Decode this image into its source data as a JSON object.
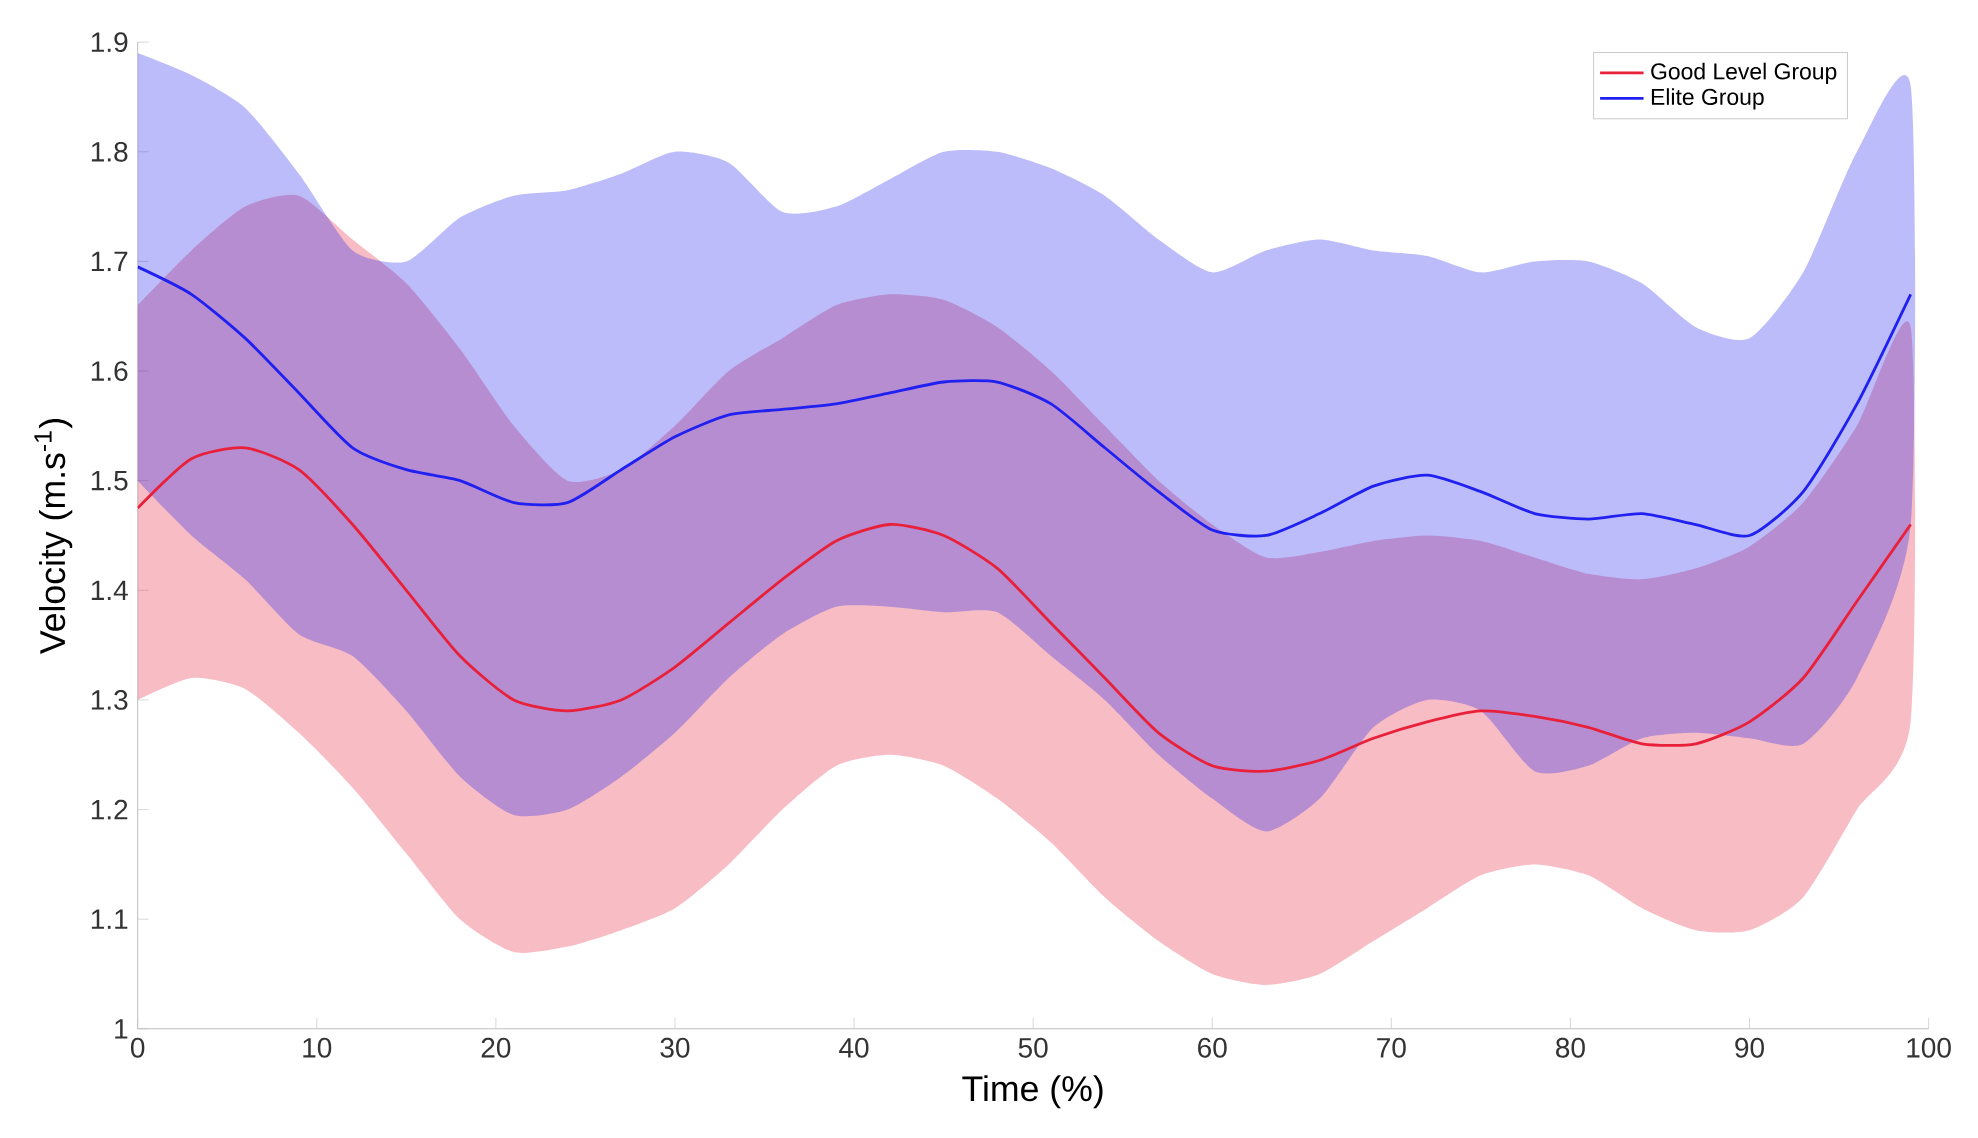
{
  "chart_data": {
    "type": "line",
    "xlabel": "Time (%)",
    "ylabel": "Velocity (m.s$^{-1}$)",
    "x": [
      0,
      3,
      6,
      9,
      12,
      15,
      18,
      21,
      24,
      27,
      30,
      33,
      36,
      39,
      42,
      45,
      48,
      51,
      54,
      57,
      60,
      63,
      66,
      69,
      72,
      75,
      78,
      81,
      84,
      87,
      90,
      93,
      96,
      99
    ],
    "xlim": [
      0,
      100
    ],
    "xticks": [
      0,
      10,
      20,
      30,
      40,
      50,
      60,
      70,
      80,
      90,
      100
    ],
    "ylim": [
      1,
      1.9
    ],
    "yticks": [
      1,
      1.1,
      1.2,
      1.3,
      1.4,
      1.5,
      1.6,
      1.7,
      1.8,
      1.9
    ],
    "grid": false,
    "legend": "top right",
    "line_style": "solid",
    "series": [
      {
        "name": "Good Level Group",
        "color": "#e8203a",
        "values": [
          1.475,
          1.52,
          1.53,
          1.51,
          1.46,
          1.4,
          1.34,
          1.3,
          1.29,
          1.3,
          1.33,
          1.37,
          1.41,
          1.445,
          1.46,
          1.45,
          1.42,
          1.37,
          1.32,
          1.27,
          1.24,
          1.235,
          1.245,
          1.265,
          1.28,
          1.29,
          1.285,
          1.275,
          1.26,
          1.26,
          1.28,
          1.32,
          1.39,
          1.46
        ],
        "lower": [
          1.3,
          1.32,
          1.31,
          1.27,
          1.22,
          1.16,
          1.1,
          1.07,
          1.075,
          1.09,
          1.11,
          1.15,
          1.2,
          1.24,
          1.25,
          1.24,
          1.21,
          1.17,
          1.12,
          1.08,
          1.05,
          1.04,
          1.05,
          1.08,
          1.11,
          1.14,
          1.15,
          1.14,
          1.11,
          1.09,
          1.09,
          1.12,
          1.2,
          1.28
        ],
        "upper": [
          1.66,
          1.71,
          1.75,
          1.76,
          1.72,
          1.68,
          1.62,
          1.55,
          1.5,
          1.51,
          1.55,
          1.6,
          1.63,
          1.66,
          1.67,
          1.665,
          1.64,
          1.6,
          1.55,
          1.5,
          1.46,
          1.43,
          1.435,
          1.445,
          1.45,
          1.445,
          1.43,
          1.415,
          1.41,
          1.42,
          1.44,
          1.48,
          1.55,
          1.64
        ]
      },
      {
        "name": "Elite Group",
        "color": "#2020f0",
        "values": [
          1.695,
          1.67,
          1.63,
          1.58,
          1.53,
          1.51,
          1.5,
          1.48,
          1.48,
          1.51,
          1.54,
          1.56,
          1.565,
          1.57,
          1.58,
          1.59,
          1.59,
          1.57,
          1.53,
          1.49,
          1.455,
          1.45,
          1.47,
          1.495,
          1.505,
          1.49,
          1.47,
          1.465,
          1.47,
          1.46,
          1.45,
          1.49,
          1.57,
          1.67
        ],
        "lower": [
          1.5,
          1.45,
          1.41,
          1.36,
          1.34,
          1.29,
          1.23,
          1.195,
          1.2,
          1.23,
          1.27,
          1.32,
          1.36,
          1.385,
          1.385,
          1.38,
          1.38,
          1.34,
          1.3,
          1.25,
          1.21,
          1.18,
          1.21,
          1.275,
          1.3,
          1.29,
          1.235,
          1.24,
          1.265,
          1.27,
          1.265,
          1.26,
          1.32,
          1.46
        ],
        "upper": [
          1.89,
          1.87,
          1.84,
          1.78,
          1.71,
          1.7,
          1.74,
          1.76,
          1.765,
          1.78,
          1.8,
          1.79,
          1.745,
          1.75,
          1.775,
          1.8,
          1.8,
          1.785,
          1.76,
          1.72,
          1.69,
          1.71,
          1.72,
          1.71,
          1.705,
          1.69,
          1.7,
          1.7,
          1.68,
          1.64,
          1.63,
          1.69,
          1.8,
          1.86
        ]
      }
    ]
  }
}
